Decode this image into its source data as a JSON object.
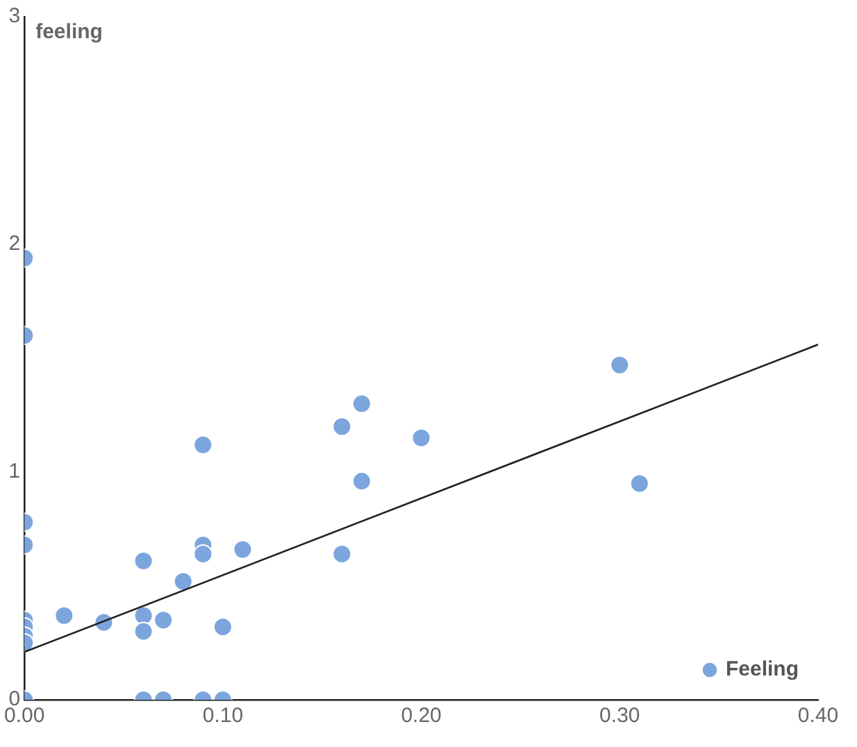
{
  "chart_data": {
    "type": "scatter",
    "ylabel": "feeling",
    "xlim": [
      0,
      0.4
    ],
    "ylim": [
      0,
      3
    ],
    "xticks": [
      {
        "value": 0,
        "label": "0.00"
      },
      {
        "value": 0.1,
        "label": "0.10"
      },
      {
        "value": 0.2,
        "label": "0.20"
      },
      {
        "value": 0.3,
        "label": "0.30"
      },
      {
        "value": 0.4,
        "label": "0.40"
      }
    ],
    "yticks": [
      0,
      1,
      2,
      3
    ],
    "grid": false,
    "legend": "bottom right",
    "marker": "circle",
    "series": [
      {
        "name": "Feeling",
        "color": "#7ba5dc",
        "x": [
          0,
          0,
          0,
          0,
          0,
          0,
          0,
          0,
          0,
          0.02,
          0.04,
          0.06,
          0.06,
          0.06,
          0.06,
          0.07,
          0.07,
          0.08,
          0.09,
          0.09,
          0.09,
          0.09,
          0.1,
          0.1,
          0.11,
          0.16,
          0.16,
          0.17,
          0.17,
          0.2,
          0.3,
          0.31
        ],
        "values": [
          1.94,
          1.6,
          0.78,
          0.68,
          0.35,
          0.32,
          0.28,
          0.25,
          0,
          0.37,
          0.34,
          0.61,
          0.37,
          0.3,
          0,
          0.35,
          0,
          0.52,
          1.12,
          0.68,
          0.64,
          0,
          0.32,
          0,
          0.66,
          1.2,
          0.64,
          1.3,
          0.96,
          1.15,
          1.47,
          0.95
        ]
      },
      {
        "type": "line",
        "color": "#222222",
        "marker": "none",
        "x": [
          0,
          0.4
        ],
        "values": [
          0.21,
          1.56
        ]
      }
    ]
  }
}
